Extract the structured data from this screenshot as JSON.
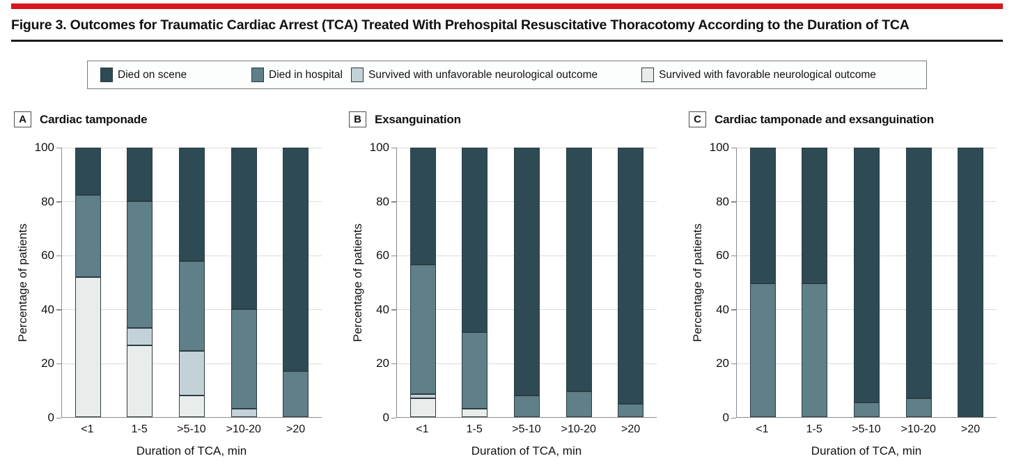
{
  "header": {
    "title": "Figure 3. Outcomes for Traumatic Cardiac Arrest (TCA) Treated With Prehospital Resuscitative Thoracotomy According to the Duration of TCA",
    "accent_color": "#d8161f"
  },
  "legend": {
    "items": [
      {
        "label": "Died on scene",
        "color": "#2e4b55"
      },
      {
        "label": "Died in hospital",
        "color": "#5f7f89"
      },
      {
        "label": "Survived with unfavorable neurological outcome",
        "color": "#c3d2d6"
      },
      {
        "label": "Survived with favorable neurological outcome",
        "color": "#e8edeb"
      }
    ]
  },
  "axis": {
    "ylabel": "Percentage of patients",
    "xlabel": "Duration of TCA, min",
    "yticks": [
      0,
      20,
      40,
      60,
      80,
      100
    ]
  },
  "chart_data": [
    {
      "type": "bar",
      "stacked": true,
      "panel_label": "A",
      "title": "Cardiac tamponade",
      "categories": [
        "<1",
        "1-5",
        ">5-10",
        ">10-20",
        ">20"
      ],
      "ylabel": "Percentage of patients",
      "xlabel": "Duration of TCA, min",
      "ylim": [
        0,
        100
      ],
      "grid": true,
      "series": [
        {
          "name": "Survived with favorable neurological outcome",
          "color": "#e8edeb",
          "values": [
            52,
            26.5,
            8,
            0,
            0
          ]
        },
        {
          "name": "Survived with unfavorable neurological outcome",
          "color": "#c3d2d6",
          "values": [
            0,
            6.5,
            16.5,
            3,
            0
          ]
        },
        {
          "name": "Died in hospital",
          "color": "#5f7f89",
          "values": [
            30.5,
            47,
            33.5,
            37,
            17
          ]
        },
        {
          "name": "Died on scene",
          "color": "#2e4b55",
          "values": [
            17.5,
            20,
            42,
            60,
            83
          ]
        }
      ]
    },
    {
      "type": "bar",
      "stacked": true,
      "panel_label": "B",
      "title": "Exsanguination",
      "categories": [
        "<1",
        "1-5",
        ">5-10",
        ">10-20",
        ">20"
      ],
      "ylabel": "Percentage of patients",
      "xlabel": "Duration of TCA, min",
      "ylim": [
        0,
        100
      ],
      "grid": true,
      "series": [
        {
          "name": "Survived with favorable neurological outcome",
          "color": "#e8edeb",
          "values": [
            7,
            3,
            0,
            0,
            0
          ]
        },
        {
          "name": "Survived with unfavorable neurological outcome",
          "color": "#c3d2d6",
          "values": [
            1.5,
            0,
            0,
            0,
            0
          ]
        },
        {
          "name": "Died in hospital",
          "color": "#5f7f89",
          "values": [
            48,
            28.5,
            8,
            9.5,
            5
          ]
        },
        {
          "name": "Died on scene",
          "color": "#2e4b55",
          "values": [
            43.5,
            68.5,
            92,
            90.5,
            95
          ]
        }
      ]
    },
    {
      "type": "bar",
      "stacked": true,
      "panel_label": "C",
      "title": "Cardiac tamponade and exsanguination",
      "categories": [
        "<1",
        "1-5",
        ">5-10",
        ">10-20",
        ">20"
      ],
      "ylabel": "Percentage of patients",
      "xlabel": "Duration of TCA, min",
      "ylim": [
        0,
        100
      ],
      "grid": true,
      "series": [
        {
          "name": "Survived with favorable neurological outcome",
          "color": "#e8edeb",
          "values": [
            0,
            0,
            0,
            0,
            0
          ]
        },
        {
          "name": "Survived with unfavorable neurological outcome",
          "color": "#c3d2d6",
          "values": [
            0,
            0,
            0,
            0,
            0
          ]
        },
        {
          "name": "Died in hospital",
          "color": "#5f7f89",
          "values": [
            49.5,
            49.5,
            5.5,
            7,
            0
          ]
        },
        {
          "name": "Died on scene",
          "color": "#2e4b55",
          "values": [
            50.5,
            50.5,
            94.5,
            93,
            100
          ]
        }
      ]
    }
  ]
}
